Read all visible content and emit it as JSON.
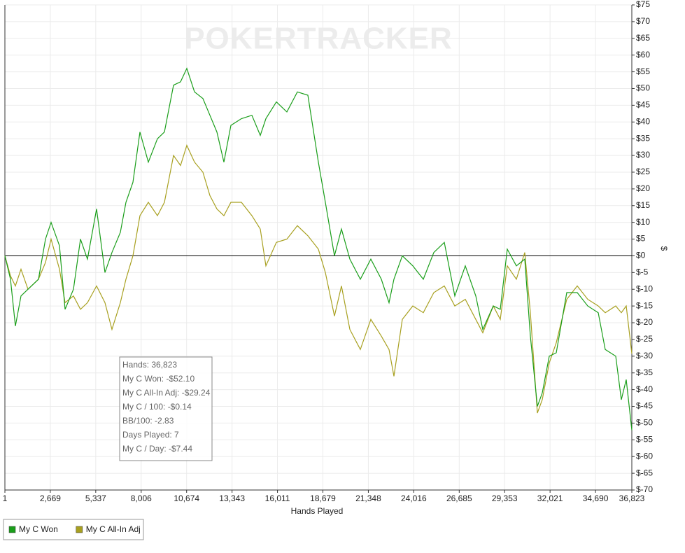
{
  "chart_data": {
    "type": "line",
    "watermark": "POKERTRACKER",
    "x_label": "Hands Played",
    "y_label": "$",
    "xlim": [
      1,
      36823
    ],
    "xticks": [
      {
        "value": 1,
        "label": "1"
      },
      {
        "value": 2669,
        "label": "2,669"
      },
      {
        "value": 5337,
        "label": "5,337"
      },
      {
        "value": 8006,
        "label": "8,006"
      },
      {
        "value": 10674,
        "label": "10,674"
      },
      {
        "value": 13343,
        "label": "13,343"
      },
      {
        "value": 16011,
        "label": "16,011"
      },
      {
        "value": 18679,
        "label": "18,679"
      },
      {
        "value": 21348,
        "label": "21,348"
      },
      {
        "value": 24016,
        "label": "24,016"
      },
      {
        "value": 26685,
        "label": "26,685"
      },
      {
        "value": 29353,
        "label": "29,353"
      },
      {
        "value": 32021,
        "label": "32,021"
      },
      {
        "value": 34690,
        "label": "34,690"
      },
      {
        "value": 36823,
        "label": "36,823"
      }
    ],
    "ylim": [
      -70,
      75
    ],
    "yticks": [
      {
        "value": -70,
        "label": "$-70"
      },
      {
        "value": -65,
        "label": "$-65"
      },
      {
        "value": -60,
        "label": "$-60"
      },
      {
        "value": -55,
        "label": "$-55"
      },
      {
        "value": -50,
        "label": "$-50"
      },
      {
        "value": -45,
        "label": "$-45"
      },
      {
        "value": -40,
        "label": "$-40"
      },
      {
        "value": -35,
        "label": "$-35"
      },
      {
        "value": -30,
        "label": "$-30"
      },
      {
        "value": -25,
        "label": "$-25"
      },
      {
        "value": -20,
        "label": "$-20"
      },
      {
        "value": -15,
        "label": "$-15"
      },
      {
        "value": -10,
        "label": "$-10"
      },
      {
        "value": -5,
        "label": "$-5"
      },
      {
        "value": 0,
        "label": "$0"
      },
      {
        "value": 5,
        "label": "$5"
      },
      {
        "value": 10,
        "label": "$10"
      },
      {
        "value": 15,
        "label": "$15"
      },
      {
        "value": 20,
        "label": "$20"
      },
      {
        "value": 25,
        "label": "$25"
      },
      {
        "value": 30,
        "label": "$30"
      },
      {
        "value": 35,
        "label": "$35"
      },
      {
        "value": 40,
        "label": "$40"
      },
      {
        "value": 45,
        "label": "$45"
      },
      {
        "value": 50,
        "label": "$50"
      },
      {
        "value": 55,
        "label": "$55"
      },
      {
        "value": 60,
        "label": "$60"
      },
      {
        "value": 65,
        "label": "$65"
      },
      {
        "value": 70,
        "label": "$70"
      },
      {
        "value": 75,
        "label": "$75"
      }
    ],
    "grid": true,
    "legend": "bottom-left",
    "x": [
      1,
      330,
      617,
      946,
      1357,
      1974,
      2384,
      2713,
      3206,
      3535,
      4028,
      4439,
      4850,
      5385,
      5877,
      6289,
      6782,
      7110,
      7521,
      7932,
      8425,
      8959,
      9370,
      9905,
      10316,
      10686,
      11138,
      11631,
      12042,
      12453,
      12864,
      13275,
      13891,
      14508,
      15001,
      15330,
      15946,
      16563,
      17179,
      17796,
      18412,
      18823,
      19357,
      19768,
      20261,
      20877,
      21494,
      22110,
      22562,
      22850,
      23343,
      23959,
      24575,
      25192,
      25808,
      26425,
      27041,
      27658,
      28069,
      28685,
      29096,
      29507,
      30041,
      30534,
      30863,
      31274,
      31561,
      31972,
      32383,
      33000,
      33616,
      34233,
      34849,
      35260,
      35876,
      36205,
      36493,
      36823
    ],
    "series": [
      {
        "name": "My C Won",
        "color": "#1a9e1a",
        "values": [
          0,
          -7,
          -21,
          -12,
          -10,
          -7,
          5,
          10,
          3,
          -16,
          -10,
          5,
          -1,
          14,
          -5,
          1,
          7,
          16,
          22,
          37,
          28,
          35,
          37,
          51,
          52,
          56,
          49,
          47,
          42,
          37,
          28,
          39,
          41,
          42,
          36,
          41,
          46,
          43,
          49,
          48,
          28,
          16,
          0,
          8,
          -1,
          -7,
          -1,
          -7,
          -14,
          -7,
          0,
          -3,
          -7,
          1,
          4,
          -12,
          -3,
          -12,
          -22,
          -15,
          -16,
          2,
          -3,
          -1,
          -24,
          -45,
          -41,
          -30,
          -29,
          -11,
          -11,
          -15,
          -17,
          -28,
          -30,
          -43,
          -37,
          -52.1
        ]
      },
      {
        "name": "My C All-In Adj",
        "color": "#a8a020",
        "values": [
          0,
          -6,
          -9,
          -4,
          -10,
          -7,
          -2,
          5,
          -4,
          -14,
          -12,
          -16,
          -14,
          -9,
          -14,
          -22,
          -14,
          -7,
          0,
          12,
          16,
          12,
          16,
          30,
          27,
          33,
          28,
          25,
          18,
          14,
          12,
          16,
          16,
          12,
          8,
          -3,
          4,
          5,
          9,
          6,
          2,
          -5,
          -18,
          -9,
          -22,
          -28,
          -19,
          -24,
          -28,
          -36,
          -19,
          -15,
          -17,
          -11,
          -9,
          -15,
          -13,
          -19,
          -23,
          -15,
          -19,
          -3,
          -7,
          1,
          -17,
          -47,
          -43,
          -32,
          -26,
          -13,
          -9,
          -13,
          -15,
          -17,
          -15,
          -17,
          -15,
          -29.24
        ]
      }
    ],
    "tooltip": [
      "Hands: 36,823",
      "My C Won: -$52.10",
      "My C All-In Adj: -$29.24",
      "My C / 100: -$0.14",
      "BB/100: -2.83",
      "Days Played: 7",
      "My C / Day: -$7.44"
    ]
  }
}
